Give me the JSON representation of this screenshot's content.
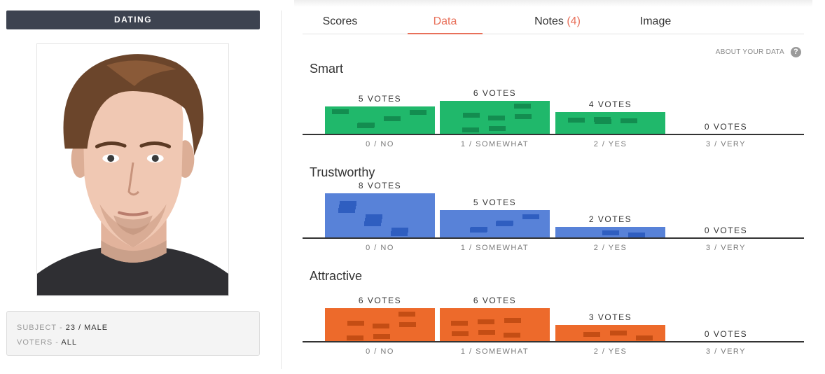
{
  "left": {
    "section_title": "DATING",
    "info": [
      {
        "key": "SUBJECT",
        "value": "23 / MALE"
      },
      {
        "key": "VOTERS",
        "value": "ALL"
      }
    ],
    "separator": " - "
  },
  "tabs": [
    {
      "label": "Scores",
      "count": ""
    },
    {
      "label": "Data",
      "count": ""
    },
    {
      "label": "Notes",
      "count": "(4)"
    },
    {
      "label": "Image",
      "count": ""
    }
  ],
  "active_tab": "Data",
  "about_link": "ABOUT YOUR DATA",
  "help_icon": "?",
  "colors": {
    "smart": "#20b86b",
    "smart_dark": "#138d50",
    "trustworthy": "#5882d8",
    "trustworthy_dark": "#2f5ec0",
    "attractive": "#ed6a2b",
    "attractive_dark": "#c44d14",
    "accent": "#e8705a"
  },
  "chart_data": [
    {
      "type": "bar",
      "title": "Smart",
      "categories": [
        "0 / NO",
        "1 / SOMEWHAT",
        "2 / YES",
        "3 / VERY"
      ],
      "values": [
        5,
        6,
        4,
        0
      ],
      "value_labels": [
        "5 VOTES",
        "6 VOTES",
        "4 VOTES",
        "0 VOTES"
      ],
      "color_key": "smart"
    },
    {
      "type": "bar",
      "title": "Trustworthy",
      "categories": [
        "0 / NO",
        "1 / SOMEWHAT",
        "2 / YES",
        "3 / VERY"
      ],
      "values": [
        8,
        5,
        2,
        0
      ],
      "value_labels": [
        "8 VOTES",
        "5 VOTES",
        "2 VOTES",
        "0 VOTES"
      ],
      "color_key": "trustworthy"
    },
    {
      "type": "bar",
      "title": "Attractive",
      "categories": [
        "0 / NO",
        "1 / SOMEWHAT",
        "2 / YES",
        "3 / VERY"
      ],
      "values": [
        6,
        6,
        3,
        0
      ],
      "value_labels": [
        "6 VOTES",
        "6 VOTES",
        "3 VOTES",
        "0 VOTES"
      ],
      "color_key": "attractive"
    }
  ]
}
